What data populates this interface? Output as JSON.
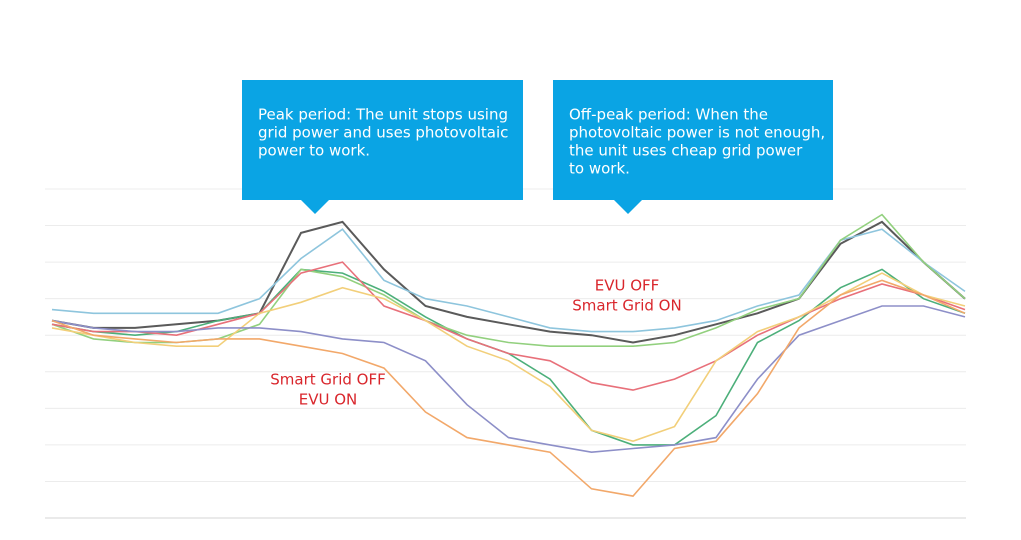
{
  "chart_data": {
    "type": "line",
    "categories": [
      null,
      null,
      null,
      null,
      null,
      null,
      null,
      null,
      null,
      null,
      null,
      null,
      null,
      null,
      null,
      null,
      null,
      null,
      null,
      null,
      null,
      null,
      null
    ],
    "ylim": [
      0,
      90
    ],
    "yticks": [
      0,
      10,
      20,
      30,
      40,
      50,
      60,
      70,
      80,
      90
    ],
    "grid": true,
    "series": [
      {
        "color": "#5a5a5a",
        "values": [
          54,
          52,
          52,
          53,
          54,
          56,
          78,
          81,
          68,
          58,
          55,
          53,
          51,
          50,
          48,
          50,
          53,
          56,
          60,
          75,
          81,
          70,
          60
        ]
      },
      {
        "color": "#8ec5dd",
        "values": [
          57,
          56,
          56,
          56,
          56,
          60,
          71,
          79,
          65,
          60,
          58,
          55,
          52,
          51,
          51,
          52,
          54,
          58,
          61,
          76,
          79,
          70,
          62
        ]
      },
      {
        "color": "#4caf7a",
        "values": [
          53,
          51,
          50,
          51,
          54,
          56,
          68,
          67,
          62,
          55,
          49,
          45,
          38,
          24,
          20,
          20,
          28,
          48,
          54,
          63,
          68,
          60,
          56
        ]
      },
      {
        "color": "#92d07e",
        "values": [
          53,
          49,
          48,
          48,
          49,
          53,
          68,
          66,
          61,
          54,
          50,
          48,
          47,
          47,
          47,
          48,
          52,
          57,
          60,
          76,
          83,
          70,
          60
        ]
      },
      {
        "color": "#e8707a",
        "values": [
          53,
          51,
          51,
          50,
          53,
          56,
          67,
          70,
          58,
          54,
          49,
          45,
          43,
          37,
          35,
          38,
          43,
          50,
          55,
          60,
          64,
          61,
          57
        ]
      },
      {
        "color": "#f2cf7a",
        "values": [
          52,
          50,
          48,
          47,
          47,
          56,
          59,
          63,
          60,
          54,
          47,
          43,
          36,
          24,
          21,
          25,
          43,
          51,
          55,
          61,
          67,
          61,
          58
        ]
      },
      {
        "color": "#8d8fc8",
        "values": [
          54,
          52,
          51,
          51,
          52,
          52,
          51,
          49,
          48,
          43,
          31,
          22,
          20,
          18,
          19,
          20,
          22,
          38,
          50,
          54,
          58,
          58,
          55
        ]
      },
      {
        "color": "#f2a86a",
        "values": [
          54,
          50,
          49,
          48,
          49,
          49,
          47,
          45,
          41,
          29,
          22,
          20,
          18,
          8,
          6,
          19,
          21,
          34,
          52,
          61,
          65,
          61,
          56
        ]
      }
    ],
    "callouts": [
      [
        "Peak period: The unit stops using",
        "grid power and uses photovoltaic",
        "power to work."
      ],
      [
        "Off-peak period: When the",
        "photovoltaic power is not enough,",
        "the unit uses cheap grid power",
        "to work."
      ]
    ],
    "annotations": [
      [
        "EVU OFF",
        "Smart Grid ON"
      ],
      [
        "Smart Grid OFF",
        "EVU ON"
      ]
    ]
  }
}
